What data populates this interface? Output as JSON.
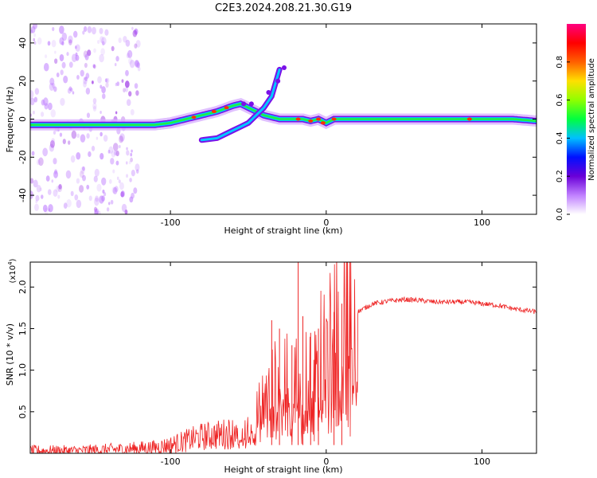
{
  "figure_title": "C2E3.2024.208.21.30.G19",
  "chart_data": [
    {
      "type": "heatmap",
      "xlabel": "Height of straight line (km)",
      "ylabel": "Frequency (Hz)",
      "xlim": [
        -190,
        135
      ],
      "ylim": [
        -50,
        50
      ],
      "xticks": [
        -100,
        0,
        100
      ],
      "xtick_labels": [
        "-100",
        "0",
        "100"
      ],
      "yticks": [
        -40,
        -20,
        0,
        20,
        40
      ],
      "ytick_labels": [
        "-40",
        "-20",
        "0",
        "20",
        "40"
      ],
      "grid": false,
      "colorbar": {
        "label": "Normalized spectral amplitude",
        "range": [
          0,
          1
        ],
        "ticks": [
          0.0,
          0.2,
          0.4,
          0.6,
          0.8
        ],
        "tick_labels": [
          "0.0",
          "0.2",
          "0.4",
          "0.6",
          "0.8"
        ],
        "colors": [
          "#ffffff",
          "#c080ff",
          "#6a00d8",
          "#0010ff",
          "#00c0ff",
          "#00ff40",
          "#90ff00",
          "#ffe000",
          "#ff6000",
          "#ff0000",
          "#ff0080"
        ]
      },
      "main_trace": {
        "x": [
          -190,
          -170,
          -150,
          -130,
          -110,
          -100,
          -90,
          -80,
          -70,
          -60,
          -55,
          -50,
          -45,
          -40,
          -35,
          -30,
          -25,
          -20,
          -15,
          -10,
          -5,
          0,
          5,
          10,
          20,
          40,
          60,
          80,
          100,
          120,
          135
        ],
        "y": [
          -3,
          -3,
          -3,
          -3,
          -3,
          -2,
          0,
          2,
          4,
          7,
          8,
          6,
          4,
          2,
          1,
          0,
          0,
          0,
          0,
          -1,
          0,
          -2,
          0,
          0,
          0,
          0,
          0,
          0,
          0,
          0,
          -1
        ]
      },
      "branch_trace": {
        "x": [
          -80,
          -70,
          -60,
          -55,
          -50,
          -45,
          -40,
          -35,
          -30
        ],
        "y": [
          -11,
          -10,
          -6,
          -4,
          -2,
          2,
          6,
          12,
          26
        ]
      },
      "notes": "spectral energy concentrated near 0 Hz; diffuse scatter across the full frequency range for heights below about -130 km"
    },
    {
      "type": "line",
      "xlabel": "Height of straight line (km)",
      "ylabel": "SNR (10 * v/v)",
      "y_multiplier_label": "(x10",
      "y_multiplier_exponent": "4",
      "y_multiplier_close": ")",
      "xlim": [
        -190,
        135
      ],
      "ylim": [
        0,
        2.3
      ],
      "xticks": [
        -100,
        0,
        100
      ],
      "xtick_labels": [
        "-100",
        "0",
        "100"
      ],
      "yticks": [
        0.5,
        1.0,
        1.5,
        2.0
      ],
      "ytick_labels": [
        "0.5",
        "1.0",
        "1.5",
        "2.0"
      ],
      "grid": false,
      "series": [
        {
          "color": "#ee2222",
          "x": [
            -190,
            -160,
            -130,
            -110,
            -100,
            -90,
            -80,
            -70,
            -60,
            -55,
            -50,
            -45,
            -40,
            -35,
            -30,
            -25,
            -20,
            -15,
            -10,
            -5,
            0,
            5,
            10,
            15,
            20,
            25,
            30,
            40,
            50,
            60,
            70,
            80,
            90,
            100,
            110,
            120,
            135
          ],
          "y": [
            0.03,
            0.03,
            0.05,
            0.07,
            0.1,
            0.15,
            0.2,
            0.22,
            0.25,
            0.2,
            0.3,
            0.45,
            0.6,
            0.75,
            0.8,
            0.85,
            0.8,
            0.9,
            0.95,
            1.0,
            1.1,
            1.3,
            1.45,
            1.6,
            1.7,
            1.75,
            1.8,
            1.83,
            1.85,
            1.84,
            1.82,
            1.82,
            1.82,
            1.8,
            1.78,
            1.74,
            1.7
          ],
          "spikes": [
            {
              "x": -22,
              "y": 1.3
            },
            {
              "x": -18,
              "y": 2.3
            },
            {
              "x": -15,
              "y": 1.65
            },
            {
              "x": -10,
              "y": 1.45
            },
            {
              "x": -5,
              "y": 1.5
            },
            {
              "x": 5,
              "y": 1.7
            },
            {
              "x": 10,
              "y": 1.8
            },
            {
              "x": -35,
              "y": 1.6
            },
            {
              "x": -30,
              "y": 1.5
            }
          ]
        }
      ]
    }
  ]
}
